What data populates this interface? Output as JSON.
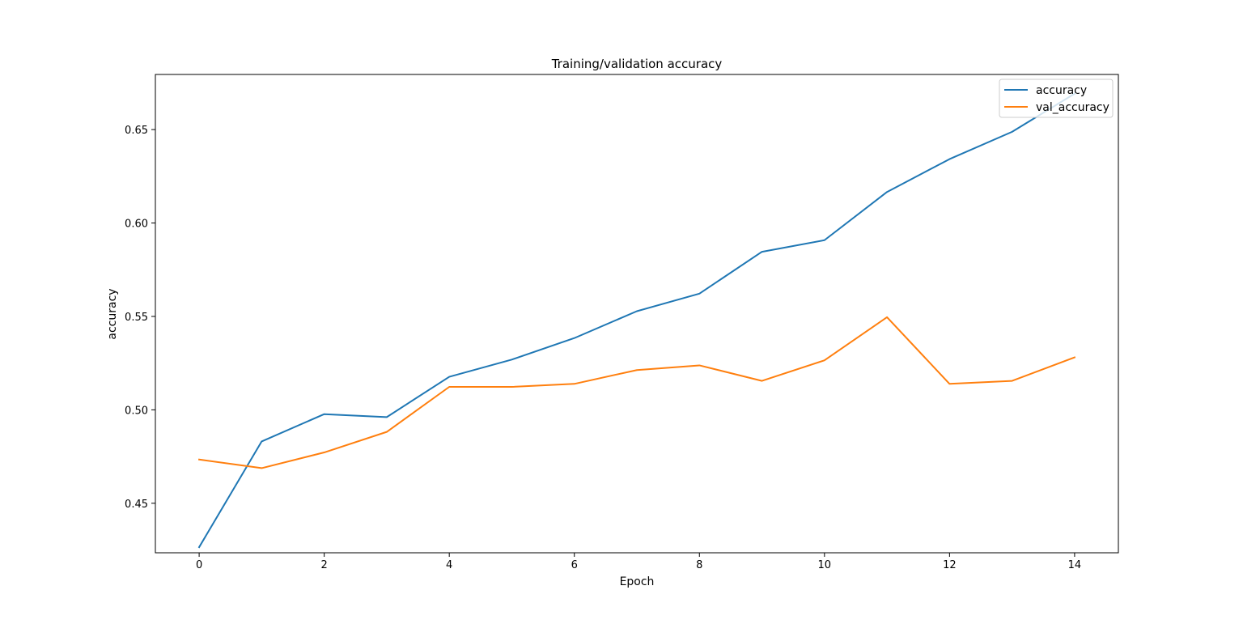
{
  "chart_data": {
    "type": "line",
    "title": "Training/validation accuracy",
    "xlabel": "Epoch",
    "ylabel": "accuracy",
    "x": [
      0,
      1,
      2,
      3,
      4,
      5,
      6,
      7,
      8,
      9,
      10,
      11,
      12,
      13,
      14
    ],
    "xlim": [
      -0.7,
      14.7
    ],
    "ylim": [
      0.4235,
      0.6795
    ],
    "xticks": [
      0,
      2,
      4,
      6,
      8,
      10,
      12,
      14
    ],
    "xtick_labels": [
      "0",
      "2",
      "4",
      "6",
      "8",
      "10",
      "12",
      "14"
    ],
    "yticks": [
      0.45,
      0.5,
      0.55,
      0.6,
      0.65
    ],
    "ytick_labels": [
      "0.45",
      "0.50",
      "0.55",
      "0.60",
      "0.65"
    ],
    "grid": false,
    "legend_position": "top-right",
    "series": [
      {
        "name": "accuracy",
        "color": "#1f77b4",
        "values": [
          0.4265,
          0.4831,
          0.4977,
          0.4961,
          0.5177,
          0.5269,
          0.5384,
          0.5528,
          0.5622,
          0.5846,
          0.5908,
          0.6166,
          0.6342,
          0.6488,
          0.6692
        ]
      },
      {
        "name": "val_accuracy",
        "color": "#ff7f0e",
        "values": [
          0.4734,
          0.4688,
          0.4772,
          0.4882,
          0.5123,
          0.5123,
          0.5139,
          0.5213,
          0.5238,
          0.5155,
          0.5265,
          0.5496,
          0.5139,
          0.5155,
          0.5281
        ]
      }
    ]
  }
}
